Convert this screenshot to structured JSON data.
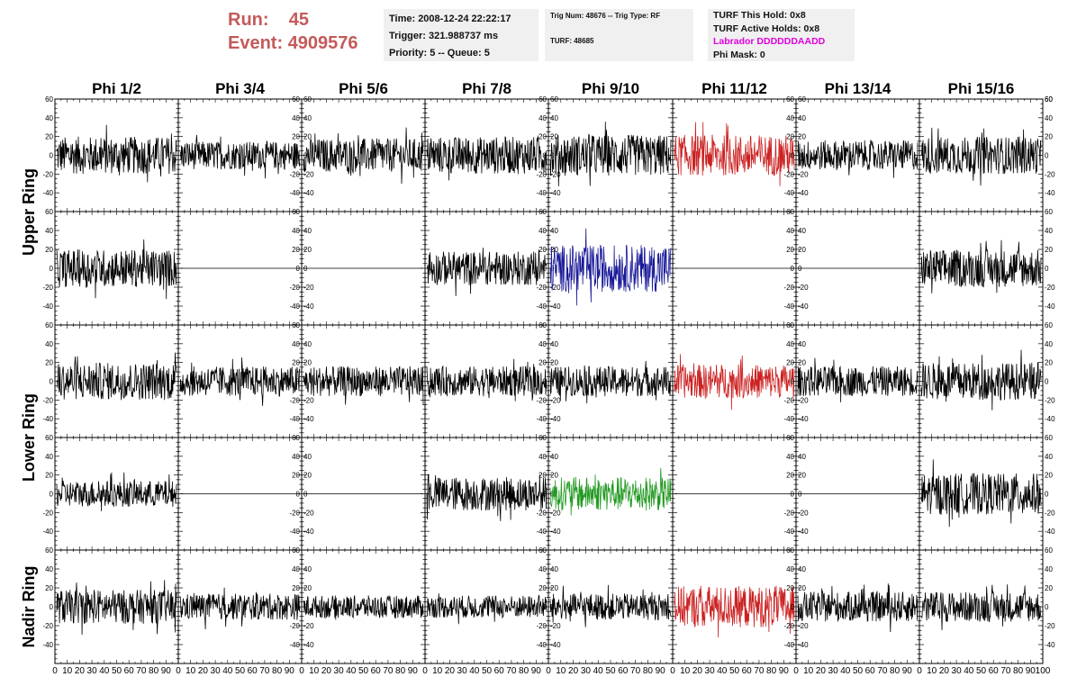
{
  "header": {
    "run_label": "Run:",
    "run_value": "45",
    "event_label": "Event:",
    "event_value": "4909576",
    "time": "Time: 2008-12-24 22:22:17",
    "trigger": "Trigger: 321.988737 ms",
    "priority": "Priority: 5 -- Queue: 5",
    "trig_num": "Trig Num: 48676 -- Trig Type: RF",
    "turf": "TURF: 48685",
    "turf_this_hold": "TURF This Hold: 0x8",
    "turf_active_holds": "TURF Active Holds: 0x8",
    "labrador": "Labrador DDDDDDAADD",
    "phi_mask": "Phi Mask: 0"
  },
  "colors": {
    "run_text": "#c45a5a",
    "labrador": "#e000e0",
    "trace_default": "#000000",
    "trace_red": "#cc2222",
    "trace_blue": "#1a1a99",
    "trace_green": "#229922"
  },
  "chart_data": {
    "type": "line",
    "columns": [
      "Phi 1/2",
      "Phi 3/4",
      "Phi 5/6",
      "Phi 7/8",
      "Phi 9/10",
      "Phi 11/12",
      "Phi 13/14",
      "Phi 15/16"
    ],
    "ring_labels": [
      "Upper Ring",
      "Lower Ring",
      "Nadir Ring"
    ],
    "ylim": [
      -60,
      60
    ],
    "xlim": [
      0,
      100
    ],
    "yticks": [
      -40,
      -20,
      0,
      20,
      40,
      60
    ],
    "xtick_labels": [
      "0",
      "10",
      "20",
      "30",
      "40",
      "50",
      "60",
      "70",
      "80",
      "90",
      "100"
    ],
    "rows": [
      {
        "amp": [
          20,
          15,
          18,
          20,
          22,
          22,
          16,
          20
        ],
        "color": [
          "black",
          "black",
          "black",
          "black",
          "black",
          "red",
          "black",
          "black"
        ]
      },
      {
        "amp": [
          20,
          0,
          0,
          18,
          25,
          0,
          0,
          20
        ],
        "color": [
          "black",
          "black",
          "black",
          "black",
          "blue",
          "black",
          "black",
          "black"
        ]
      },
      {
        "amp": [
          20,
          16,
          16,
          16,
          16,
          18,
          16,
          20
        ],
        "color": [
          "black",
          "black",
          "black",
          "black",
          "black",
          "red",
          "black",
          "black"
        ]
      },
      {
        "amp": [
          14,
          0,
          0,
          18,
          18,
          0,
          0,
          22
        ],
        "color": [
          "black",
          "black",
          "black",
          "black",
          "green",
          "black",
          "black",
          "black"
        ]
      },
      {
        "amp": [
          18,
          14,
          12,
          12,
          14,
          22,
          16,
          16
        ],
        "color": [
          "black",
          "black",
          "black",
          "black",
          "black",
          "red",
          "black",
          "black"
        ]
      }
    ]
  }
}
